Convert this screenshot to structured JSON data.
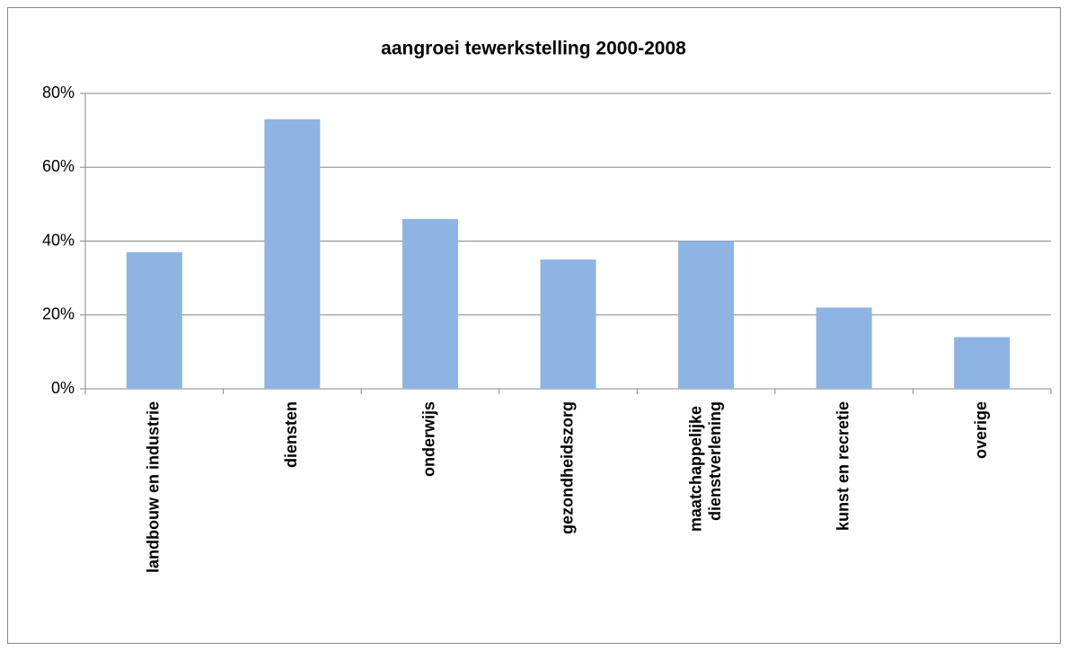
{
  "chart_data": {
    "type": "bar",
    "title": "aangroei tewerkstelling 2000-2008",
    "categories": [
      "landbouw en industrie",
      "diensten",
      "onderwijs",
      "gezondheidszorg",
      "maatchappelijke dienstverlening",
      "kunst en recretie",
      "overige"
    ],
    "values": [
      37,
      73,
      46,
      35,
      40,
      22,
      14
    ],
    "color": "#8eb4e3",
    "ylim": [
      0,
      80
    ],
    "yticks": [
      {
        "value": 0,
        "label": "0%"
      },
      {
        "value": 20,
        "label": "20%"
      },
      {
        "value": 40,
        "label": "40%"
      },
      {
        "value": 60,
        "label": "60%"
      },
      {
        "value": 80,
        "label": "80%"
      }
    ],
    "grid": true
  }
}
